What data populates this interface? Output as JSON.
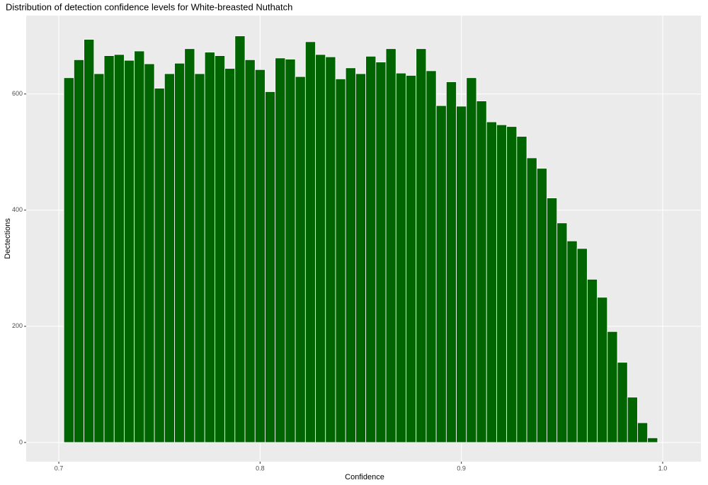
{
  "chart_data": {
    "type": "histogram",
    "title": "Distribution of detection confidence levels for White-breasted Nuthatch",
    "xlabel": "Confidence",
    "ylabel": "Dectections",
    "bins": [
      0.7025,
      0.7075,
      0.7125,
      0.7175,
      0.7225,
      0.7275,
      0.7325,
      0.7375,
      0.7425,
      0.7475,
      0.7525,
      0.7575,
      0.7625,
      0.7675,
      0.7725,
      0.7775,
      0.7825,
      0.7875,
      0.7925,
      0.7975,
      0.8025,
      0.8075,
      0.8125,
      0.8175,
      0.8225,
      0.8275,
      0.8325,
      0.8375,
      0.8425,
      0.8475,
      0.8525,
      0.8575,
      0.8625,
      0.8675,
      0.8725,
      0.8775,
      0.8825,
      0.8875,
      0.8925,
      0.8975,
      0.9025,
      0.9075,
      0.9125,
      0.9175,
      0.9225,
      0.9275,
      0.9325,
      0.9375,
      0.9425,
      0.9475,
      0.9525,
      0.9575,
      0.9625,
      0.9675,
      0.9725,
      0.9775,
      0.9825,
      0.9875,
      0.9925,
      0.9975
    ],
    "values": [
      628,
      659,
      694,
      635,
      666,
      668,
      658,
      674,
      652,
      610,
      635,
      653,
      678,
      635,
      672,
      666,
      644,
      700,
      659,
      642,
      604,
      662,
      660,
      630,
      690,
      668,
      664,
      626,
      645,
      635,
      665,
      655,
      678,
      636,
      632,
      678,
      640,
      580,
      621,
      579,
      628,
      588,
      552,
      547,
      544,
      527,
      490,
      472,
      421,
      378,
      347,
      334,
      281,
      250,
      191,
      138,
      78,
      34,
      8
    ],
    "color": "#006400",
    "xlim": [
      0.6838,
      1.019
    ],
    "ylim": [
      -33,
      735
    ],
    "xticks": [
      0.7,
      0.8,
      0.9,
      {
        "value": 1.0,
        "label": "1.0"
      }
    ],
    "yticks": [
      0,
      200,
      400,
      600
    ],
    "grid": true
  }
}
